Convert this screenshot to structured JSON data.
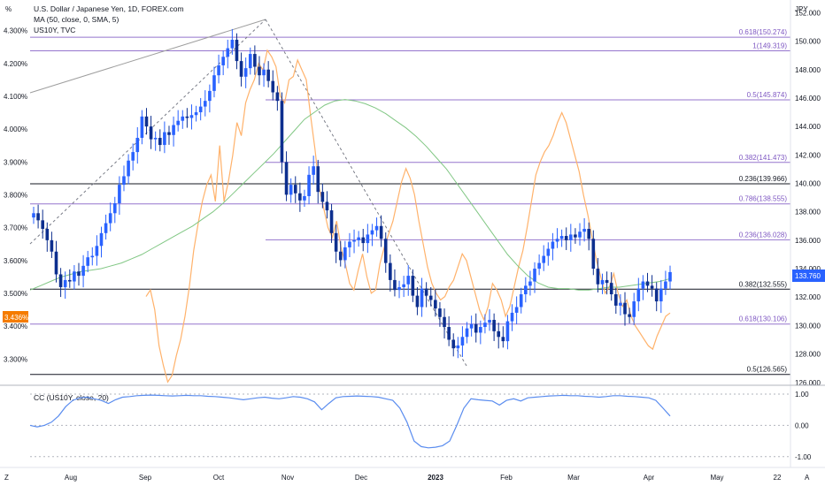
{
  "chart_data": {
    "type": "candlestick",
    "title": "U.S. Dollar / Japanese Yen, 1D, FOREX.com",
    "indicators": [
      "MA (50, close, 0, SMA, 5)",
      "US10Y, TVC"
    ],
    "left_axis": {
      "unit_label": "%",
      "ticks": [
        "4.300%",
        "4.200%",
        "4.100%",
        "4.000%",
        "3.900%",
        "3.800%",
        "3.700%",
        "3.600%",
        "3.500%",
        "3.400%",
        "3.300%"
      ],
      "range": [
        3.22,
        4.35
      ]
    },
    "right_axis": {
      "unit_label": "JPY",
      "ticks": [
        "152.000",
        "150.000",
        "148.000",
        "146.000",
        "144.000",
        "142.000",
        "140.000",
        "138.000",
        "136.000",
        "134.000",
        "132.000",
        "130.000",
        "128.000",
        "126.000"
      ],
      "range": [
        125.8,
        151.9
      ]
    },
    "x_axis": {
      "ticks": [
        "Aug",
        "Sep",
        "Oct",
        "Nov",
        "Dec",
        "2023",
        "Feb",
        "Mar",
        "Apr",
        "May",
        "22"
      ]
    },
    "badges": {
      "last_price": "133.760",
      "us10y_value": "3.436%"
    },
    "fib_levels": [
      {
        "label": "0.618(150.274)",
        "value": 150.274,
        "color": "#9575cd"
      },
      {
        "label": "1(149.319)",
        "value": 149.319,
        "color": "#9575cd"
      },
      {
        "label": "0.5(145.874)",
        "value": 145.874,
        "color": "#9575cd"
      },
      {
        "label": "0.382(141.473)",
        "value": 141.473,
        "color": "#9575cd"
      },
      {
        "label": "0.236(139.966)",
        "value": 139.966,
        "color": "#131722"
      },
      {
        "label": "0.786(138.555)",
        "value": 138.555,
        "color": "#9575cd"
      },
      {
        "label": "0.236(136.028)",
        "value": 136.028,
        "color": "#9575cd"
      },
      {
        "label": "0.382(132.555)",
        "value": 132.555,
        "color": "#131722"
      },
      {
        "label": "0.618(130.106)",
        "value": 130.106,
        "color": "#9575cd"
      },
      {
        "label": "0.5(126.565)",
        "value": 126.565,
        "color": "#131722"
      }
    ],
    "usdjpy_close": [
      137.9,
      137.4,
      136.8,
      136.0,
      135.2,
      133.6,
      132.7,
      133.2,
      133.1,
      133.8,
      133.5,
      134.2,
      134.8,
      134.9,
      135.6,
      136.5,
      137.2,
      137.9,
      138.6,
      139.9,
      140.5,
      141.6,
      142.2,
      143.2,
      144.7,
      144.0,
      143.1,
      143.2,
      142.7,
      143.6,
      143.4,
      144.1,
      144.4,
      144.7,
      144.6,
      144.8,
      145.0,
      145.4,
      145.8,
      146.5,
      147.6,
      148.3,
      148.9,
      149.5,
      150.1,
      148.6,
      147.5,
      148.1,
      149.1,
      148.2,
      147.6,
      148.0,
      147.2,
      146.4,
      145.8,
      141.5,
      139.2,
      139.9,
      139.3,
      138.8,
      139.1,
      140.6,
      141.2,
      139.4,
      138.7,
      138.1,
      136.5,
      135.2,
      134.6,
      135.5,
      135.9,
      136.0,
      136.2,
      135.8,
      136.4,
      136.7,
      137.0,
      136.1,
      134.4,
      133.2,
      132.5,
      132.7,
      132.9,
      133.5,
      132.1,
      131.3,
      132.6,
      132.1,
      131.8,
      131.2,
      130.6,
      129.9,
      129.0,
      128.4,
      128.6,
      129.2,
      129.8,
      130.1,
      129.5,
      129.9,
      130.2,
      130.4,
      129.6,
      129.2,
      128.9,
      130.3,
      130.9,
      131.3,
      132.2,
      132.8,
      133.1,
      134.0,
      134.4,
      134.9,
      135.4,
      135.9,
      136.1,
      136.3,
      136.0,
      136.4,
      136.2,
      136.6,
      136.8,
      136.1,
      134.0,
      132.9,
      133.2,
      133.0,
      132.2,
      131.4,
      131.6,
      130.8,
      130.6,
      131.7,
      132.6,
      133.1,
      132.8,
      132.6,
      131.7,
      132.6,
      133.1,
      133.76
    ],
    "ma50": [
      132.5,
      132.8,
      133.1,
      133.4,
      133.6,
      133.8,
      133.9,
      134.0,
      134.2,
      134.4,
      134.7,
      135.0,
      135.4,
      135.8,
      136.2,
      136.6,
      137.0,
      137.5,
      138.0,
      138.6,
      139.3,
      140.0,
      140.7,
      141.4,
      142.1,
      142.9,
      143.7,
      144.5,
      145.0,
      145.5,
      145.8,
      145.9,
      145.8,
      145.6,
      145.3,
      144.9,
      144.4,
      143.9,
      143.3,
      142.6,
      141.8,
      141.0,
      140.0,
      139.0,
      138.0,
      137.0,
      136.0,
      135.0,
      134.2,
      133.5,
      133.0,
      132.7,
      132.6,
      132.6,
      132.5,
      132.5,
      132.6,
      132.7,
      132.7,
      132.8,
      132.9,
      133.0,
      133.1,
      133.3
    ],
    "us10y": [
      3.49,
      3.51,
      3.45,
      3.34,
      3.28,
      3.23,
      3.25,
      3.31,
      3.36,
      3.43,
      3.52,
      3.63,
      3.71,
      3.78,
      3.83,
      3.86,
      3.78,
      3.95,
      3.78,
      3.84,
      3.92,
      4.02,
      3.98,
      4.08,
      4.12,
      4.15,
      4.2,
      4.18,
      4.24,
      4.22,
      4.19,
      4.1,
      4.08,
      4.15,
      4.16,
      4.21,
      4.18,
      4.15,
      4.04,
      3.94,
      3.82,
      3.76,
      3.7,
      3.67,
      3.72,
      3.64,
      3.59,
      3.53,
      3.51,
      3.57,
      3.62,
      3.55,
      3.5,
      3.51,
      3.59,
      3.64,
      3.68,
      3.72,
      3.78,
      3.84,
      3.88,
      3.85,
      3.8,
      3.72,
      3.65,
      3.58,
      3.53,
      3.5,
      3.48,
      3.49,
      3.52,
      3.54,
      3.58,
      3.62,
      3.6,
      3.55,
      3.5,
      3.45,
      3.42,
      3.46,
      3.53,
      3.51,
      3.48,
      3.43,
      3.46,
      3.52,
      3.58,
      3.63,
      3.7,
      3.78,
      3.86,
      3.9,
      3.93,
      3.95,
      3.98,
      4.02,
      4.05,
      4.02,
      3.97,
      3.92,
      3.87,
      3.8,
      3.74,
      3.67,
      3.6,
      3.55,
      3.5,
      3.52,
      3.56,
      3.5,
      3.46,
      3.48,
      3.43,
      3.4,
      3.38,
      3.36,
      3.34,
      3.33,
      3.37,
      3.4,
      3.43,
      3.44
    ],
    "cc_panel": {
      "label": "CC (US10Y, close, 20)",
      "ticks": [
        "1.00",
        "0.00",
        "-1.00"
      ],
      "range": [
        -1.12,
        1.0
      ],
      "values": [
        0.0,
        -0.05,
        0.0,
        0.1,
        0.3,
        0.6,
        0.8,
        0.88,
        0.9,
        0.85,
        0.8,
        0.7,
        0.82,
        0.9,
        0.92,
        0.95,
        0.96,
        0.97,
        0.96,
        0.95,
        0.94,
        0.95,
        0.96,
        0.95,
        0.95,
        0.93,
        0.92,
        0.9,
        0.88,
        0.85,
        0.82,
        0.85,
        0.88,
        0.9,
        0.87,
        0.85,
        0.88,
        0.92,
        0.9,
        0.85,
        0.75,
        0.5,
        0.7,
        0.88,
        0.92,
        0.93,
        0.94,
        0.93,
        0.92,
        0.9,
        0.85,
        0.8,
        0.55,
        0.1,
        -0.5,
        -0.68,
        -0.72,
        -0.7,
        -0.65,
        -0.5,
        0.0,
        0.55,
        0.85,
        0.82,
        0.8,
        0.78,
        0.65,
        0.8,
        0.85,
        0.78,
        0.88,
        0.9,
        0.92,
        0.94,
        0.95,
        0.96,
        0.95,
        0.95,
        0.93,
        0.92,
        0.9,
        0.92,
        0.95,
        0.95,
        0.93,
        0.92,
        0.9,
        0.88,
        0.8,
        0.55,
        0.3
      ]
    }
  }
}
